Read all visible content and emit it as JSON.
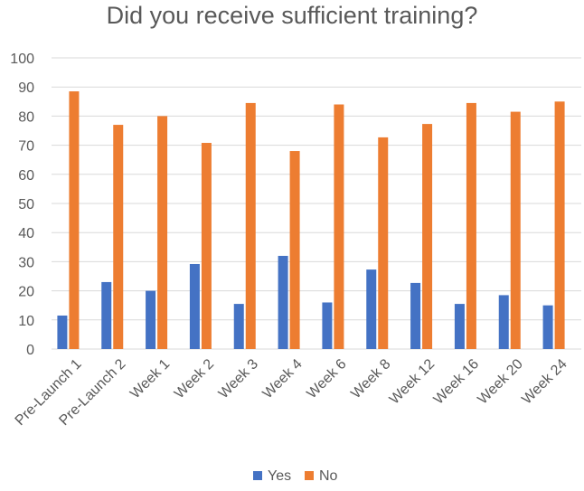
{
  "chart_data": {
    "type": "bar",
    "title": "Did you receive sufficient training?",
    "categories": [
      "Pre-Launch 1",
      "Pre-Launch 2",
      "Week 1",
      "Week 2",
      "Week 3",
      "Week 4",
      "Week 6",
      "Week 8",
      "Week 12",
      "Week 16",
      "Week 20",
      "Week 24"
    ],
    "series": [
      {
        "name": "Yes",
        "color": "#4472C4",
        "values": [
          11.5,
          23,
          20,
          29.2,
          15.5,
          32,
          16,
          27.3,
          22.7,
          15.5,
          18.5,
          15
        ]
      },
      {
        "name": "No",
        "color": "#ED7D31",
        "values": [
          88.5,
          77,
          80,
          70.8,
          84.5,
          68,
          84,
          72.7,
          77.3,
          84.5,
          81.5,
          85
        ]
      }
    ],
    "ylim": [
      0,
      100
    ],
    "yticks": [
      0,
      10,
      20,
      30,
      40,
      50,
      60,
      70,
      80,
      90,
      100
    ],
    "grid": true,
    "legend_position": "bottom"
  }
}
